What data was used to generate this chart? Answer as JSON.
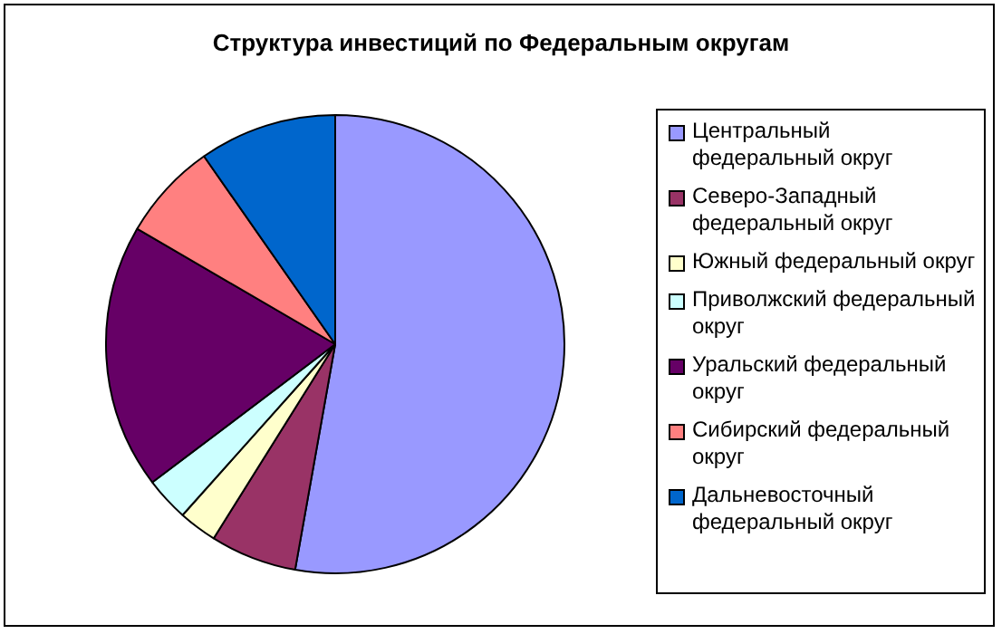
{
  "chart_data": {
    "type": "pie",
    "title": "Структура инвестиций по Федеральным округам",
    "categories": [
      "Центральный федеральный округ",
      "Северо-Западный федеральный округ",
      "Южный федеральный округ",
      "Приволжский федеральный округ",
      "Уральский федеральный округ",
      "Сибирский федеральный округ",
      "Дальневосточный федеральный округ"
    ],
    "values": [
      52.8,
      6.1,
      2.7,
      3.1,
      18.7,
      6.9,
      9.7
    ],
    "colors": [
      "#9999ff",
      "#993366",
      "#ffffcc",
      "#ccffff",
      "#660066",
      "#ff8080",
      "#0066cc"
    ],
    "legend": "right"
  }
}
